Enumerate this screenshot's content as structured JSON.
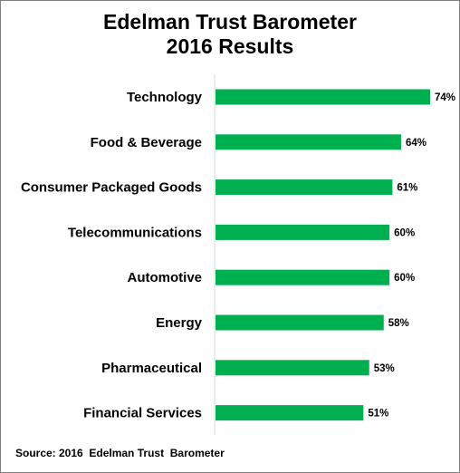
{
  "title_line1": "Edelman Trust Barometer",
  "title_line2": "2016 Results",
  "source": "Source: 2016  Edelman Trust  Barometer",
  "colors": {
    "bar": "#00b050",
    "axis": "#d9d9d9"
  },
  "chart_data": {
    "type": "bar",
    "orientation": "horizontal",
    "categories": [
      "Technology",
      "Food & Beverage",
      "Consumer Packaged Goods",
      "Telecommunications",
      "Automotive",
      "Energy",
      "Pharmaceutical",
      "Financial Services"
    ],
    "values": [
      74,
      64,
      61,
      60,
      60,
      58,
      53,
      51
    ],
    "value_labels": [
      "74%",
      "64%",
      "61%",
      "60%",
      "60%",
      "58%",
      "53%",
      "51%"
    ],
    "xlim": [
      0,
      74
    ],
    "grid": false,
    "legend": "none"
  }
}
